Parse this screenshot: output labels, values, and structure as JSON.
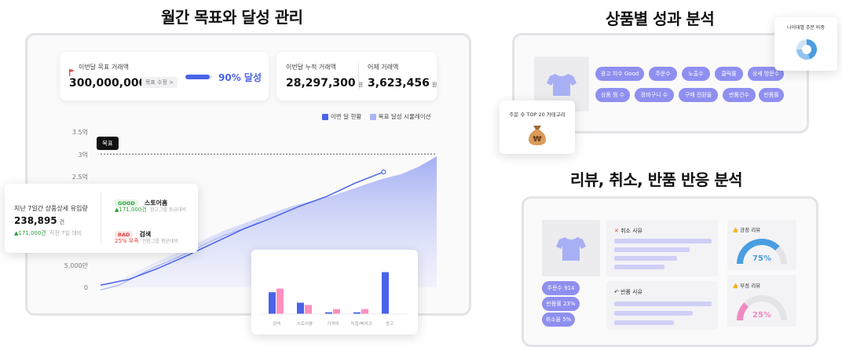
{
  "left": {
    "title": "월간 목표와 달성 관리",
    "target_card": {
      "label": "이번달 목표 거래액",
      "value": "300,000,000",
      "unit": "원",
      "edit_button": "목표 수정 >",
      "progress": 0.9,
      "progress_label": "90% 달성"
    },
    "accum_card": {
      "label": "이번달 누적 거래액",
      "value": "28,297,300",
      "unit": "원"
    },
    "yesterday_card": {
      "label": "어제 거래액",
      "value": "3,623,456",
      "unit": "원"
    },
    "legend": {
      "current": "이번 달 현황",
      "simulation": "목표 달성 시뮬레이션"
    },
    "goal_tag": "목표",
    "y_ticks": [
      "3.5억",
      "3억",
      "2.5억",
      "5,000만",
      "0"
    ],
    "traffic_card": {
      "label": "지난 7일간 상품상세 유입량",
      "value": "238,895",
      "unit": "건",
      "delta": "▲171,000건",
      "delta_note": "직전 7일 대비",
      "good_tag": "GOOD",
      "good_title": "스토어홈",
      "good_delta": "▲171,000건",
      "good_note": "광고그룹 등급대비",
      "bad_tag": "BAD",
      "bad_title": "검색",
      "bad_delta": "25% 부족",
      "bad_note": "전환그룹 평균대비"
    },
    "mini_chart": {
      "categories": [
        "검색",
        "스토어팜",
        "가격비",
        "직접/북마크",
        "광고"
      ]
    }
  },
  "chart_data": [
    {
      "type": "area",
      "title": "",
      "series": [
        {
          "name": "이번 달 현황",
          "values": [
            0.05,
            0.18,
            0.42,
            0.7,
            1.0,
            1.3,
            1.55,
            1.82,
            2.05,
            2.35,
            2.6
          ]
        },
        {
          "name": "목표 달성 시뮬레이션",
          "values": [
            0.05,
            0.15,
            0.35,
            0.55,
            0.72,
            0.9,
            1.1,
            1.28,
            1.42,
            1.58,
            1.72,
            1.85,
            1.95,
            2.05,
            2.18,
            2.32,
            2.45,
            2.55,
            2.72,
            2.95
          ]
        }
      ],
      "y_ticks": [
        "3.5억",
        "3억",
        "2.5억",
        "5,000만",
        "0"
      ],
      "ylim": [
        0,
        3.5
      ],
      "goal_line": 3.0
    },
    {
      "type": "bar",
      "categories": [
        "검색",
        "스토어팜",
        "가격비",
        "직접/북마크",
        "광고"
      ],
      "series": [
        {
          "name": "",
          "color": "#4a63e8",
          "values": [
            48,
            25,
            4,
            4,
            92
          ]
        },
        {
          "name": "",
          "color": "#ff8fc0",
          "values": [
            56,
            20,
            11,
            11,
            0
          ]
        }
      ],
      "ylim": [
        0,
        100
      ]
    },
    {
      "type": "pie",
      "title": "나이대별 주문 비중",
      "slices": [
        0.45,
        0.3,
        0.25
      ]
    }
  ],
  "right_top": {
    "title": "상품별 성과 분석",
    "chips_row1": [
      "광고 지수 Good",
      "주문수",
      "노출수",
      "클릭률",
      "상세 방문수"
    ],
    "chips_row2": [
      "상품 찜 수",
      "장바구니 수",
      "구매 전환율",
      "반품건수",
      "반품률"
    ],
    "category_card": "주문 수 TOP 20 카테고리",
    "age_card": "나이대별 주문 비중"
  },
  "right_bottom": {
    "title": "리뷰, 취소, 반품 반응 분석",
    "chips": [
      "주문수 914",
      "반품률 23%",
      "취소율 5%"
    ],
    "cancel_reason": "취소 사유",
    "return_reason": "반품 사유",
    "positive_review": "긍정 리뷰",
    "positive_value": "75%",
    "positive_ratio": 0.75,
    "negative_review": "부정 리뷰",
    "negative_value": "25%",
    "negative_ratio": 0.25
  },
  "colors": {
    "accent_blue": "#4a63e8",
    "accent_lavender": "#8f8ff0",
    "pink": "#ff8fc0",
    "gauge_blue": "#4a9de0",
    "gauge_pink": "#f08ac0"
  }
}
